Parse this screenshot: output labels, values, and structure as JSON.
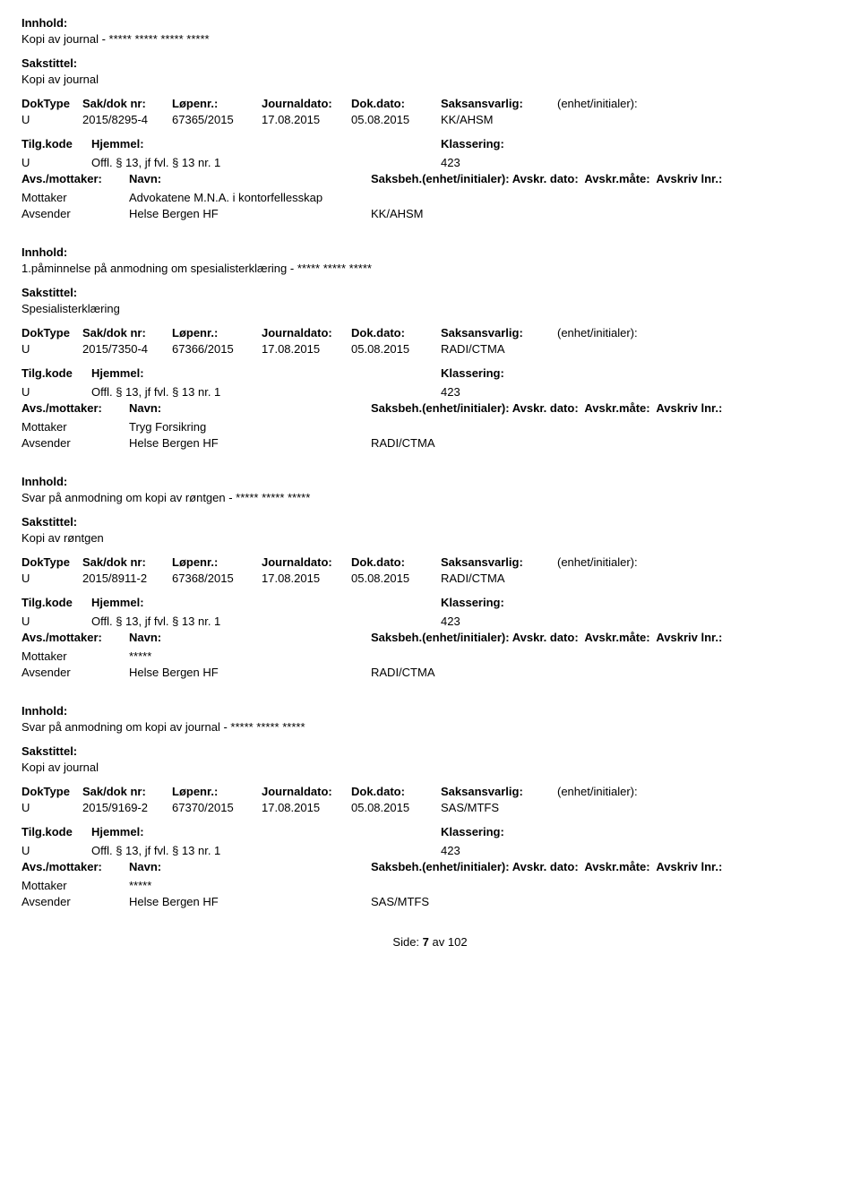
{
  "labels": {
    "innhold": "Innhold:",
    "sakstittel": "Sakstittel:",
    "doktype": "DokType",
    "sakdok": "Sak/dok nr:",
    "lopenr": "Løpenr.:",
    "journaldato": "Journaldato:",
    "dokdato": "Dok.dato:",
    "saksansvarlig": "Saksansvarlig:",
    "enhet": "(enhet/initialer):",
    "tilgkode": "Tilg.kode",
    "hjemmel": "Hjemmel:",
    "klassering": "Klassering:",
    "avsmottaker": "Avs./mottaker:",
    "navn": "Navn:",
    "saksbeh": "Saksbeh.(enhet/initialer):",
    "avskr_dato": "Avskr. dato:",
    "avskr_mate": "Avskr.måte:",
    "avskriv_lnr": "Avskriv lnr.:",
    "mottaker": "Mottaker",
    "avsender": "Avsender"
  },
  "records": [
    {
      "innhold": "Kopi av journal - ***** ***** ***** *****",
      "sakstittel": "Kopi av journal",
      "doktype": "U",
      "sakdok": "2015/8295-4",
      "lopenr": "67365/2015",
      "journaldato": "17.08.2015",
      "dokdato": "05.08.2015",
      "saksansvarlig": "KK/AHSM",
      "tilgkode": "U",
      "hjemmel": "Offl. § 13, jf fvl. § 13 nr. 1",
      "klassering": "423",
      "mottaker_navn": "Advokatene M.N.A. i kontorfellesskap",
      "avsender_navn": "Helse Bergen HF",
      "saksbeh_val": "KK/AHSM"
    },
    {
      "innhold": "1.påminnelse på anmodning om spesialisterklæring - ***** ***** *****",
      "sakstittel": "Spesialisterklæring",
      "doktype": "U",
      "sakdok": "2015/7350-4",
      "lopenr": "67366/2015",
      "journaldato": "17.08.2015",
      "dokdato": "05.08.2015",
      "saksansvarlig": "RADI/CTMA",
      "tilgkode": "U",
      "hjemmel": "Offl. § 13, jf fvl. § 13 nr. 1",
      "klassering": "423",
      "mottaker_navn": "Tryg Forsikring",
      "avsender_navn": "Helse Bergen HF",
      "saksbeh_val": "RADI/CTMA"
    },
    {
      "innhold": "Svar på anmodning om kopi av røntgen - ***** ***** *****",
      "sakstittel": "Kopi av røntgen",
      "doktype": "U",
      "sakdok": "2015/8911-2",
      "lopenr": "67368/2015",
      "journaldato": "17.08.2015",
      "dokdato": "05.08.2015",
      "saksansvarlig": "RADI/CTMA",
      "tilgkode": "U",
      "hjemmel": "Offl. § 13, jf fvl. § 13 nr. 1",
      "klassering": "423",
      "mottaker_navn": "*****",
      "avsender_navn": "Helse Bergen HF",
      "saksbeh_val": "RADI/CTMA"
    },
    {
      "innhold": "Svar på anmodning om kopi av journal - ***** ***** *****",
      "sakstittel": "Kopi av journal",
      "doktype": "U",
      "sakdok": "2015/9169-2",
      "lopenr": "67370/2015",
      "journaldato": "17.08.2015",
      "dokdato": "05.08.2015",
      "saksansvarlig": "SAS/MTFS",
      "tilgkode": "U",
      "hjemmel": "Offl. § 13, jf fvl. § 13 nr. 1",
      "klassering": "423",
      "mottaker_navn": "*****",
      "avsender_navn": "Helse Bergen HF",
      "saksbeh_val": "SAS/MTFS"
    }
  ],
  "footer": {
    "side": "Side:",
    "page": "7",
    "av": "av",
    "total": "102"
  }
}
